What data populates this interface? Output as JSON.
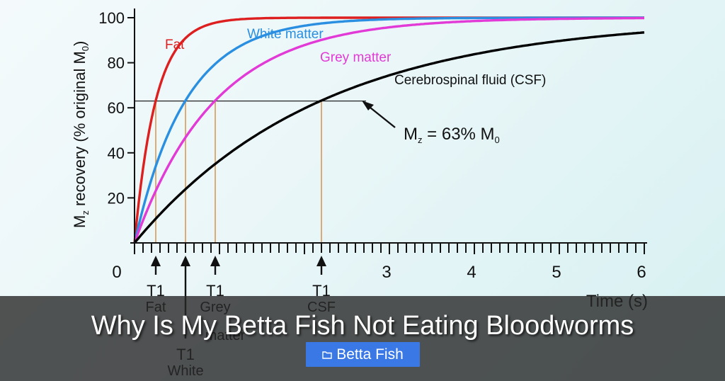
{
  "chart_data": {
    "type": "line",
    "title": "",
    "xlabel": "Time (s)",
    "ylabel_main": "M",
    "ylabel_sub": "z",
    "ylabel_rest": " recovery (% original M",
    "ylabel_sub2": "0",
    "ylabel_end": ")",
    "xlim": [
      0,
      6
    ],
    "ylim": [
      0,
      100
    ],
    "xticks": [
      0,
      3,
      4,
      5,
      6
    ],
    "yticks": [
      20,
      40,
      60,
      80,
      100
    ],
    "grid": false,
    "series": [
      {
        "name": "Fat",
        "color": "#dd1f1f",
        "t1": 0.25
      },
      {
        "name": "White matter",
        "color": "#2a8fe0",
        "t1": 0.6
      },
      {
        "name": "Grey matter",
        "color": "#e23ad6",
        "t1": 0.95
      },
      {
        "name": "Cerebrospinal fluid (CSF)",
        "color": "#000000",
        "t1": 2.2
      }
    ],
    "threshold": {
      "value": 63,
      "label_pre": "M",
      "label_sub": "z",
      "label_mid": " = 63% M",
      "label_sub2": "0"
    },
    "t1_markers": [
      {
        "series": 0,
        "line1": "T1",
        "line2": "Fat"
      },
      {
        "series": 1,
        "line1": "T1",
        "line2": "White"
      },
      {
        "series": 2,
        "line1": "T1",
        "line2": "Grey",
        "line3": "matter"
      },
      {
        "series": 3,
        "line1": "T1",
        "line2": "CSF"
      }
    ]
  },
  "banner": {
    "title": "Why Is My Betta Fish Not Eating Bloodworms",
    "category": "Betta Fish",
    "category_icon": "folder-icon"
  }
}
